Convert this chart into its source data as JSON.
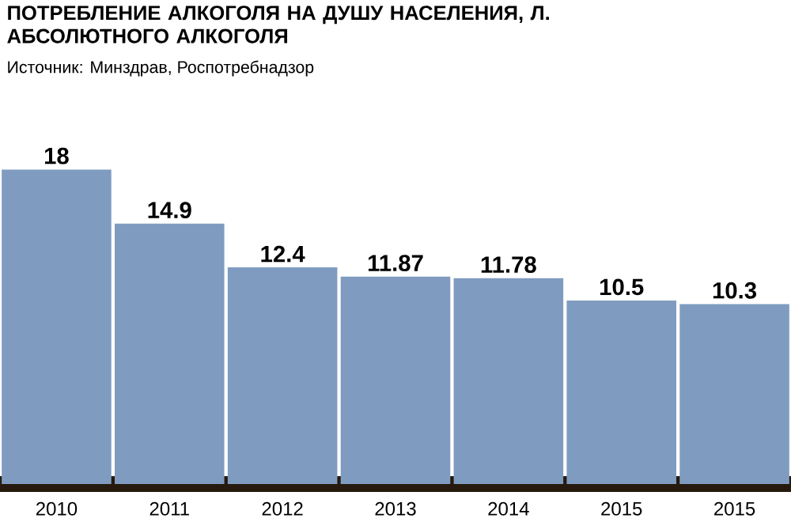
{
  "chart_data": {
    "type": "bar",
    "title": "ПОТРЕБЛЕНИЕ АЛКОГОЛЯ НА ДУШУ НАСЕЛЕНИЯ, Л. АБСОЛЮТНОГО АЛКОГОЛЯ",
    "subtitle": "Источник: Минздрав, Роспотребнадзор",
    "categories": [
      "2010",
      "2011",
      "2012",
      "2013",
      "2014",
      "2015",
      "2015"
    ],
    "values": [
      18,
      14.9,
      12.4,
      11.87,
      11.78,
      10.5,
      10.3
    ],
    "color": "#7f9cc0",
    "data_labels": true
  }
}
